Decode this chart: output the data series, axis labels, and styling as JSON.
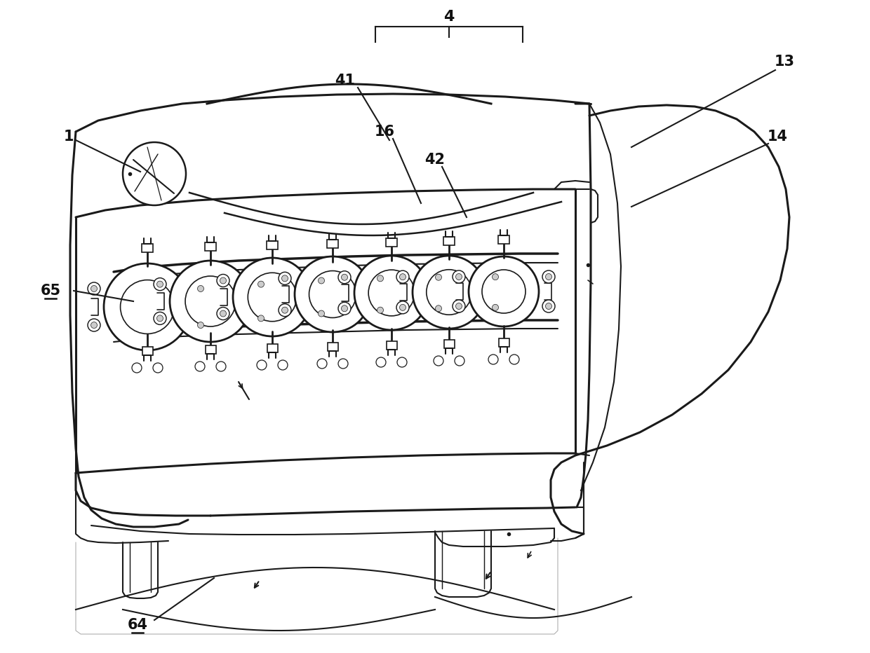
{
  "background_color": "#ffffff",
  "lc": "#1a1a1a",
  "lw": 1.5,
  "blw": 2.2,
  "fig_width": 12.4,
  "fig_height": 9.32,
  "dpi": 100
}
